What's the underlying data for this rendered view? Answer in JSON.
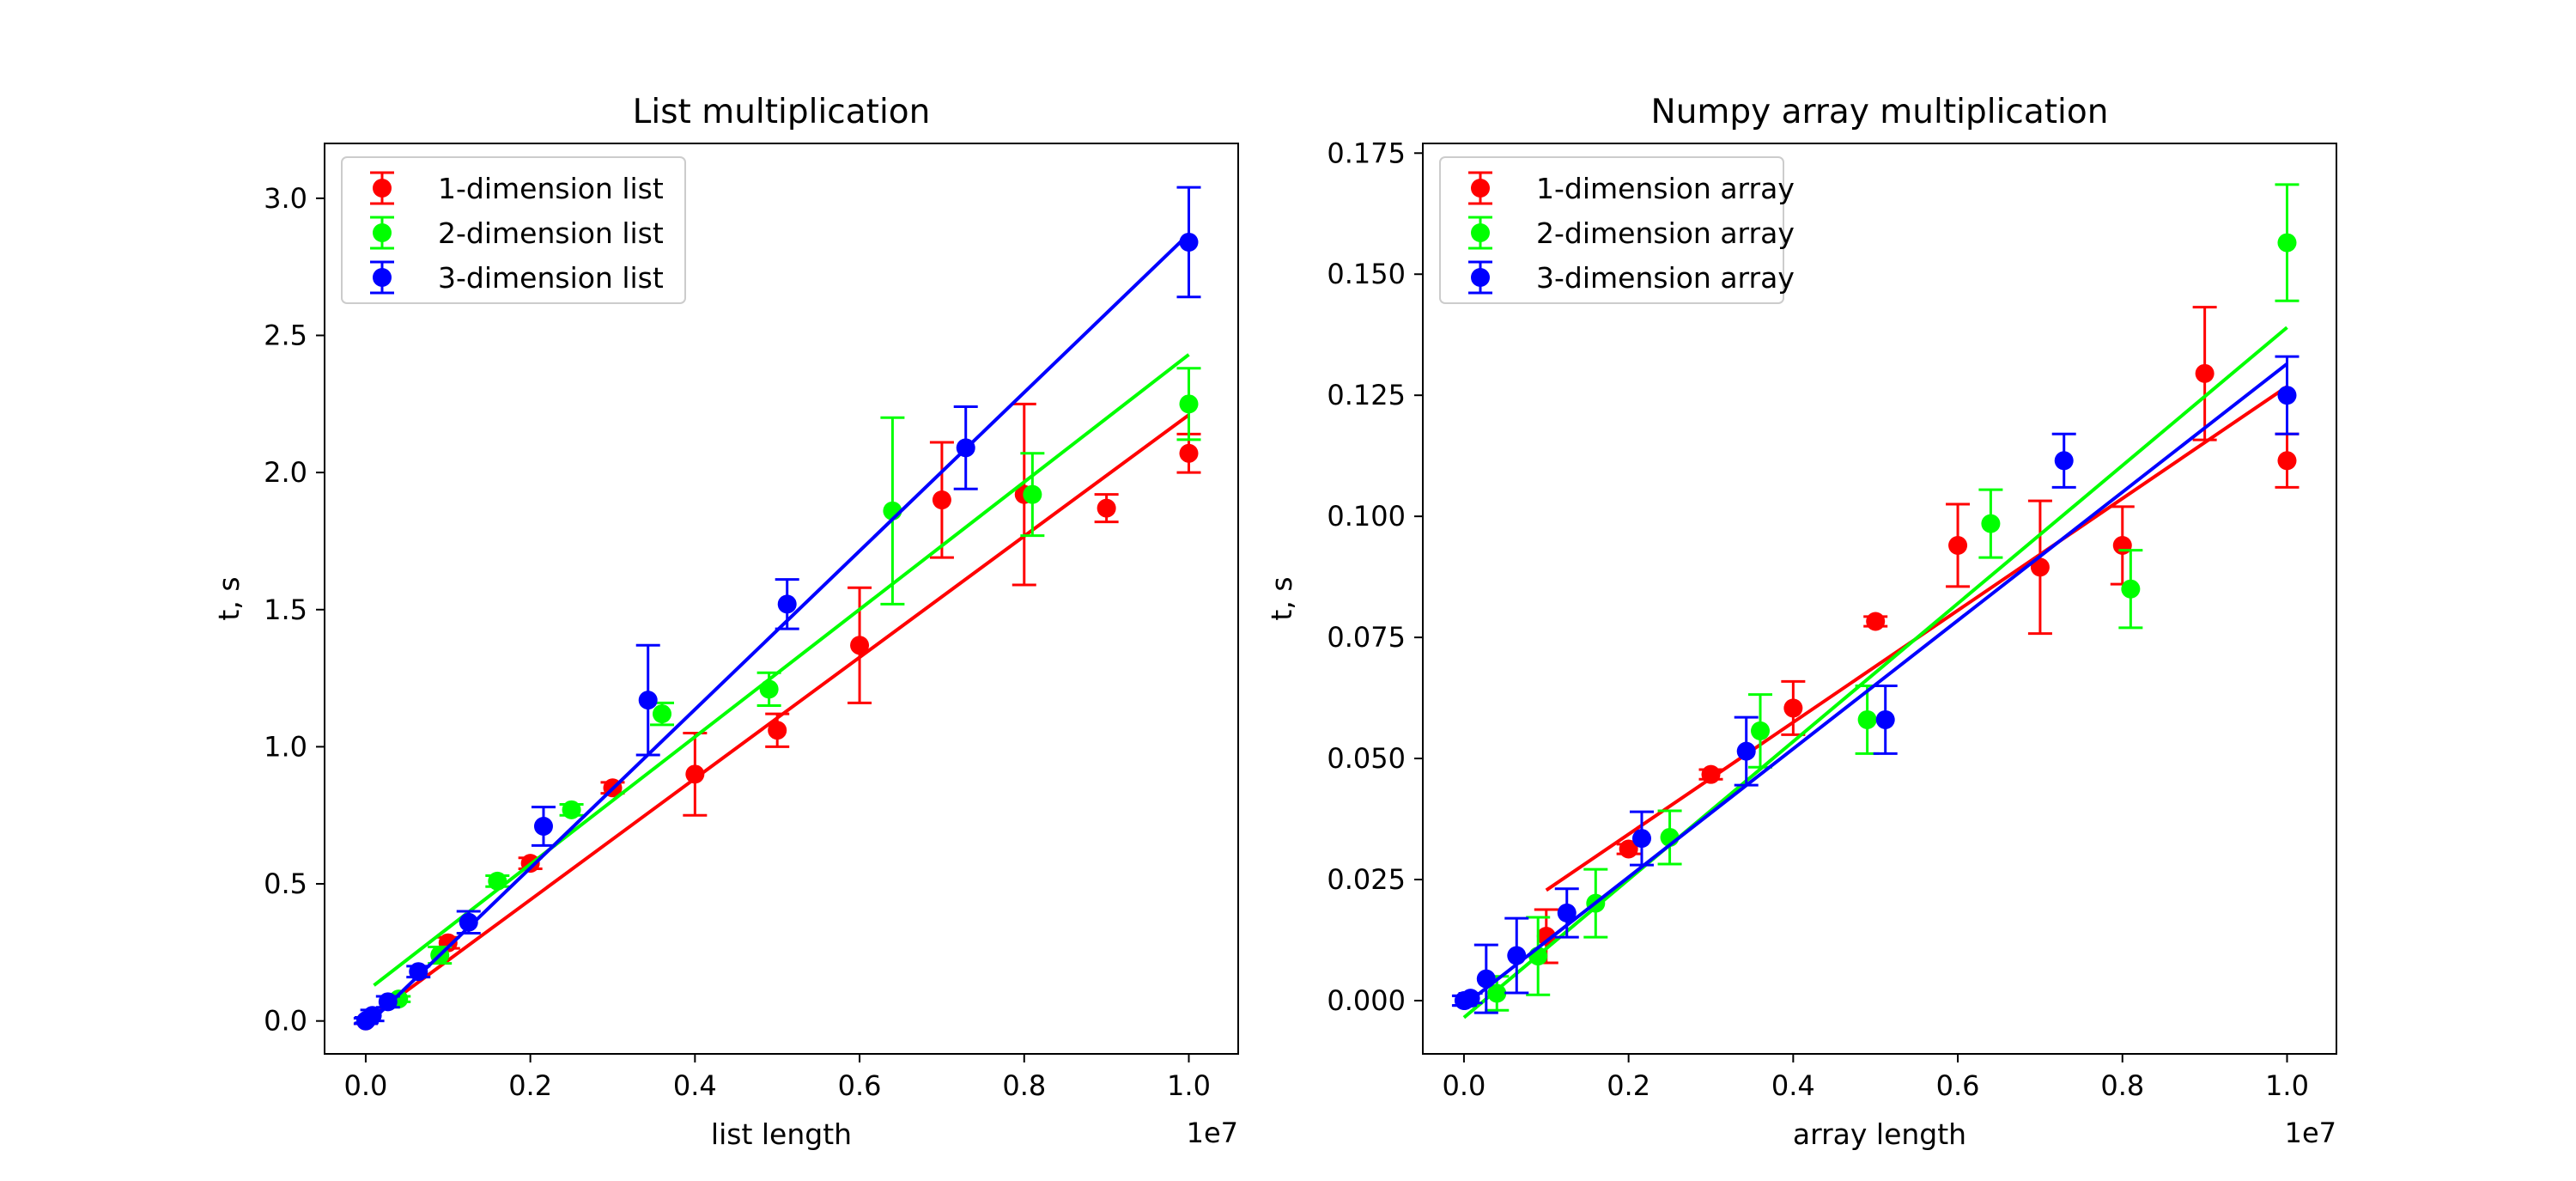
{
  "colors": {
    "red": "#ff0000",
    "green": "#00ff00",
    "blue": "#0000ff"
  },
  "chart_data": [
    {
      "type": "scatter",
      "title": "List multiplication",
      "xlabel": "list length",
      "ylabel": "t, s",
      "x_offset_label": "1e7",
      "xlim": [
        -0.05,
        1.06
      ],
      "ylim": [
        -0.12,
        3.2
      ],
      "x_ticks": [
        0.0,
        0.2,
        0.4,
        0.6,
        0.8,
        1.0
      ],
      "x_tick_labels": [
        "0.0",
        "0.2",
        "0.4",
        "0.6",
        "0.8",
        "1.0"
      ],
      "y_ticks": [
        0.0,
        0.5,
        1.0,
        1.5,
        2.0,
        2.5,
        3.0
      ],
      "y_tick_labels": [
        "0.0",
        "0.5",
        "1.0",
        "1.5",
        "2.0",
        "2.5",
        "3.0"
      ],
      "legend_position": "top-left",
      "grid": false,
      "series": [
        {
          "name": "1-dimension list",
          "color": "#ff0000",
          "x": [
            0.0,
            0.1,
            0.2,
            0.3,
            0.4,
            0.5,
            0.6,
            0.7,
            0.8,
            0.9,
            1.0
          ],
          "y": [
            0.0,
            0.285,
            0.575,
            0.85,
            0.9,
            1.06,
            1.37,
            1.9,
            1.92,
            1.87,
            2.07
          ],
          "yerr": [
            0.01,
            0.02,
            0.02,
            0.02,
            0.15,
            0.06,
            0.21,
            0.21,
            0.33,
            0.05,
            0.07
          ],
          "fit": {
            "x": [
              0.0,
              1.0
            ],
            "y": [
              0.0,
              2.21
            ]
          }
        },
        {
          "name": "2-dimension list",
          "color": "#00ff00",
          "x": [
            0.04,
            0.09,
            0.16,
            0.25,
            0.36,
            0.49,
            0.64,
            0.81,
            1.0
          ],
          "y": [
            0.08,
            0.24,
            0.51,
            0.77,
            1.12,
            1.21,
            1.86,
            1.92,
            2.25
          ],
          "yerr": [
            0.01,
            0.03,
            0.02,
            0.02,
            0.04,
            0.06,
            0.34,
            0.15,
            0.13
          ],
          "fit": {
            "x": [
              0.01,
              1.0
            ],
            "y": [
              0.13,
              2.43
            ]
          }
        },
        {
          "name": "3-dimension list",
          "color": "#0000ff",
          "x": [
            0.0,
            0.001,
            0.008,
            0.027,
            0.064,
            0.125,
            0.216,
            0.343,
            0.512,
            0.729,
            1.0
          ],
          "y": [
            0.0,
            0.003,
            0.02,
            0.07,
            0.18,
            0.36,
            0.71,
            1.17,
            1.52,
            2.09,
            2.84
          ],
          "yerr": [
            0.01,
            0.01,
            0.02,
            0.02,
            0.02,
            0.04,
            0.07,
            0.2,
            0.09,
            0.15,
            0.2
          ],
          "fit": {
            "x": [
              0.0,
              1.0
            ],
            "y": [
              -0.02,
              2.87
            ]
          }
        }
      ]
    },
    {
      "type": "scatter",
      "title": "Numpy array multiplication",
      "xlabel": "array length",
      "ylabel": "t, s",
      "x_offset_label": "1e7",
      "xlim": [
        -0.05,
        1.06
      ],
      "ylim": [
        -0.011,
        0.177
      ],
      "x_ticks": [
        0.0,
        0.2,
        0.4,
        0.6,
        0.8,
        1.0
      ],
      "x_tick_labels": [
        "0.0",
        "0.2",
        "0.4",
        "0.6",
        "0.8",
        "1.0"
      ],
      "y_ticks": [
        0.0,
        0.025,
        0.05,
        0.075,
        0.1,
        0.125,
        0.15,
        0.175
      ],
      "y_tick_labels": [
        "0.000",
        "0.025",
        "0.050",
        "0.075",
        "0.100",
        "0.125",
        "0.150",
        "0.175"
      ],
      "legend_position": "top-left",
      "grid": false,
      "series": [
        {
          "name": "1-dimension array",
          "color": "#ff0000",
          "x": [
            0.1,
            0.2,
            0.3,
            0.4,
            0.5,
            0.6,
            0.7,
            0.8,
            0.9,
            1.0
          ],
          "y": [
            0.0133,
            0.0313,
            0.0467,
            0.0604,
            0.0783,
            0.094,
            0.0895,
            0.094,
            0.1295,
            0.1115
          ],
          "yerr": [
            0.0055,
            0.001,
            0.001,
            0.0055,
            0.001,
            0.0085,
            0.0137,
            0.008,
            0.0137,
            0.0055
          ],
          "fit": {
            "x": [
              0.1,
              1.0
            ],
            "y": [
              0.0228,
              0.1268
            ]
          }
        },
        {
          "name": "2-dimension array",
          "color": "#00ff00",
          "x": [
            0.04,
            0.09,
            0.16,
            0.25,
            0.36,
            0.49,
            0.64,
            0.81,
            1.0
          ],
          "y": [
            0.0015,
            0.0092,
            0.0201,
            0.0337,
            0.0557,
            0.058,
            0.0985,
            0.085,
            0.1565
          ],
          "yerr": [
            0.0035,
            0.008,
            0.007,
            0.0055,
            0.0075,
            0.007,
            0.007,
            0.008,
            0.012
          ],
          "fit": {
            "x": [
              0.0,
              1.0
            ],
            "y": [
              -0.0035,
              0.139
            ]
          }
        },
        {
          "name": "3-dimension array",
          "color": "#0000ff",
          "x": [
            0.0,
            0.001,
            0.008,
            0.027,
            0.064,
            0.125,
            0.216,
            0.343,
            0.512,
            0.729,
            1.0
          ],
          "y": [
            0.0,
            0.0,
            0.0005,
            0.0045,
            0.0093,
            0.0181,
            0.0335,
            0.0515,
            0.058,
            0.1115,
            0.125
          ],
          "yerr": [
            0.001,
            0.001,
            0.001,
            0.007,
            0.0077,
            0.005,
            0.0055,
            0.007,
            0.007,
            0.0055,
            0.008
          ],
          "fit": {
            "x": [
              0.0,
              1.0
            ],
            "y": [
              -0.001,
              0.1315
            ]
          }
        }
      ]
    }
  ]
}
